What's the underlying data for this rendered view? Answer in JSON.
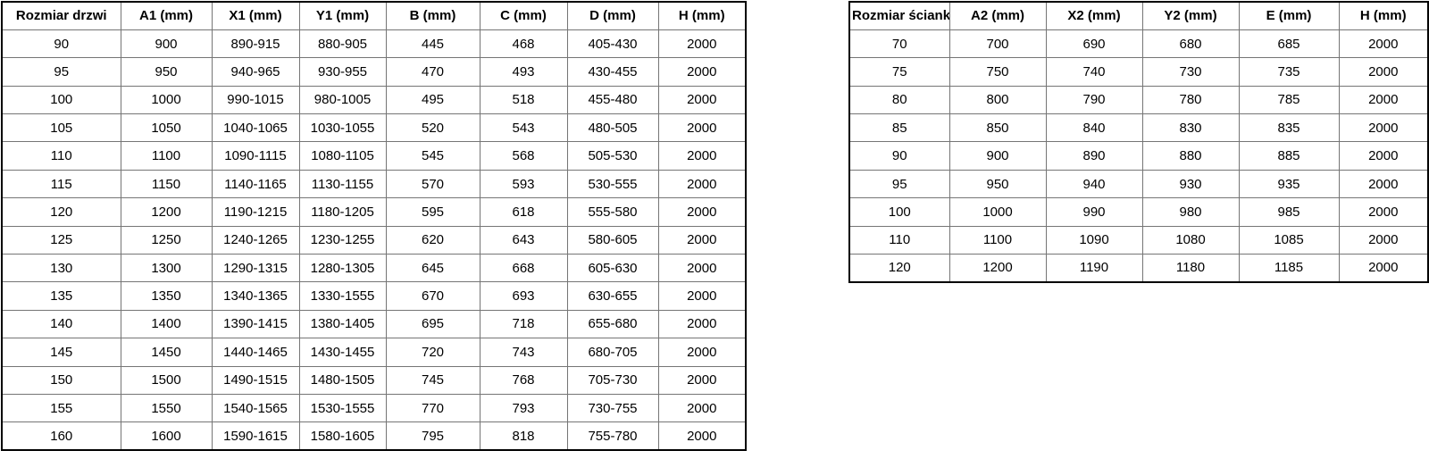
{
  "colors": {
    "background": "#ffffff",
    "outer_border": "#000000",
    "inner_border": "#757575",
    "text": "#000000"
  },
  "tables": [
    {
      "name": "door-size-table",
      "headers": [
        "Rozmiar drzwi",
        "A1 (mm)",
        "X1 (mm)",
        "Y1 (mm)",
        "B (mm)",
        "C (mm)",
        "D (mm)",
        "H (mm)"
      ],
      "rows": [
        [
          "90",
          "900",
          "890-915",
          "880-905",
          "445",
          "468",
          "405-430",
          "2000"
        ],
        [
          "95",
          "950",
          "940-965",
          "930-955",
          "470",
          "493",
          "430-455",
          "2000"
        ],
        [
          "100",
          "1000",
          "990-1015",
          "980-1005",
          "495",
          "518",
          "455-480",
          "2000"
        ],
        [
          "105",
          "1050",
          "1040-1065",
          "1030-1055",
          "520",
          "543",
          "480-505",
          "2000"
        ],
        [
          "110",
          "1100",
          "1090-1115",
          "1080-1105",
          "545",
          "568",
          "505-530",
          "2000"
        ],
        [
          "115",
          "1150",
          "1140-1165",
          "1130-1155",
          "570",
          "593",
          "530-555",
          "2000"
        ],
        [
          "120",
          "1200",
          "1190-1215",
          "1180-1205",
          "595",
          "618",
          "555-580",
          "2000"
        ],
        [
          "125",
          "1250",
          "1240-1265",
          "1230-1255",
          "620",
          "643",
          "580-605",
          "2000"
        ],
        [
          "130",
          "1300",
          "1290-1315",
          "1280-1305",
          "645",
          "668",
          "605-630",
          "2000"
        ],
        [
          "135",
          "1350",
          "1340-1365",
          "1330-1555",
          "670",
          "693",
          "630-655",
          "2000"
        ],
        [
          "140",
          "1400",
          "1390-1415",
          "1380-1405",
          "695",
          "718",
          "655-680",
          "2000"
        ],
        [
          "145",
          "1450",
          "1440-1465",
          "1430-1455",
          "720",
          "743",
          "680-705",
          "2000"
        ],
        [
          "150",
          "1500",
          "1490-1515",
          "1480-1505",
          "745",
          "768",
          "705-730",
          "2000"
        ],
        [
          "155",
          "1550",
          "1540-1565",
          "1530-1555",
          "770",
          "793",
          "730-755",
          "2000"
        ],
        [
          "160",
          "1600",
          "1590-1615",
          "1580-1605",
          "795",
          "818",
          "755-780",
          "2000"
        ]
      ]
    },
    {
      "name": "wall-size-table",
      "headers": [
        "Rozmiar ścianki",
        "A2 (mm)",
        "X2 (mm)",
        "Y2 (mm)",
        "E (mm)",
        "H (mm)"
      ],
      "rows": [
        [
          "70",
          "700",
          "690",
          "680",
          "685",
          "2000"
        ],
        [
          "75",
          "750",
          "740",
          "730",
          "735",
          "2000"
        ],
        [
          "80",
          "800",
          "790",
          "780",
          "785",
          "2000"
        ],
        [
          "85",
          "850",
          "840",
          "830",
          "835",
          "2000"
        ],
        [
          "90",
          "900",
          "890",
          "880",
          "885",
          "2000"
        ],
        [
          "95",
          "950",
          "940",
          "930",
          "935",
          "2000"
        ],
        [
          "100",
          "1000",
          "990",
          "980",
          "985",
          "2000"
        ],
        [
          "110",
          "1100",
          "1090",
          "1080",
          "1085",
          "2000"
        ],
        [
          "120",
          "1200",
          "1190",
          "1180",
          "1185",
          "2000"
        ]
      ]
    }
  ],
  "chart_data": [
    {
      "type": "table",
      "title": "Rozmiar drzwi",
      "columns": [
        "Rozmiar drzwi",
        "A1 (mm)",
        "X1 (mm)",
        "Y1 (mm)",
        "B (mm)",
        "C (mm)",
        "D (mm)",
        "H (mm)"
      ],
      "rows": [
        [
          "90",
          "900",
          "890-915",
          "880-905",
          "445",
          "468",
          "405-430",
          "2000"
        ],
        [
          "95",
          "950",
          "940-965",
          "930-955",
          "470",
          "493",
          "430-455",
          "2000"
        ],
        [
          "100",
          "1000",
          "990-1015",
          "980-1005",
          "495",
          "518",
          "455-480",
          "2000"
        ],
        [
          "105",
          "1050",
          "1040-1065",
          "1030-1055",
          "520",
          "543",
          "480-505",
          "2000"
        ],
        [
          "110",
          "1100",
          "1090-1115",
          "1080-1105",
          "545",
          "568",
          "505-530",
          "2000"
        ],
        [
          "115",
          "1150",
          "1140-1165",
          "1130-1155",
          "570",
          "593",
          "530-555",
          "2000"
        ],
        [
          "120",
          "1200",
          "1190-1215",
          "1180-1205",
          "595",
          "618",
          "555-580",
          "2000"
        ],
        [
          "125",
          "1250",
          "1240-1265",
          "1230-1255",
          "620",
          "643",
          "580-605",
          "2000"
        ],
        [
          "130",
          "1300",
          "1290-1315",
          "1280-1305",
          "645",
          "668",
          "605-630",
          "2000"
        ],
        [
          "135",
          "1350",
          "1340-1365",
          "1330-1555",
          "670",
          "693",
          "630-655",
          "2000"
        ],
        [
          "140",
          "1400",
          "1390-1415",
          "1380-1405",
          "695",
          "718",
          "655-680",
          "2000"
        ],
        [
          "145",
          "1450",
          "1440-1465",
          "1430-1455",
          "720",
          "743",
          "680-705",
          "2000"
        ],
        [
          "150",
          "1500",
          "1490-1515",
          "1480-1505",
          "745",
          "768",
          "705-730",
          "2000"
        ],
        [
          "155",
          "1550",
          "1540-1565",
          "1530-1555",
          "770",
          "793",
          "730-755",
          "2000"
        ],
        [
          "160",
          "1600",
          "1590-1615",
          "1580-1605",
          "795",
          "818",
          "755-780",
          "2000"
        ]
      ]
    },
    {
      "type": "table",
      "title": "Rozmiar ścianki",
      "columns": [
        "Rozmiar ścianki",
        "A2 (mm)",
        "X2 (mm)",
        "Y2 (mm)",
        "E (mm)",
        "H (mm)"
      ],
      "rows": [
        [
          "70",
          "700",
          "690",
          "680",
          "685",
          "2000"
        ],
        [
          "75",
          "750",
          "740",
          "730",
          "735",
          "2000"
        ],
        [
          "80",
          "800",
          "790",
          "780",
          "785",
          "2000"
        ],
        [
          "85",
          "850",
          "840",
          "830",
          "835",
          "2000"
        ],
        [
          "90",
          "900",
          "890",
          "880",
          "885",
          "2000"
        ],
        [
          "95",
          "950",
          "940",
          "930",
          "935",
          "2000"
        ],
        [
          "100",
          "1000",
          "990",
          "980",
          "985",
          "2000"
        ],
        [
          "110",
          "1100",
          "1090",
          "1080",
          "1085",
          "2000"
        ],
        [
          "120",
          "1200",
          "1190",
          "1180",
          "1185",
          "2000"
        ]
      ]
    }
  ]
}
